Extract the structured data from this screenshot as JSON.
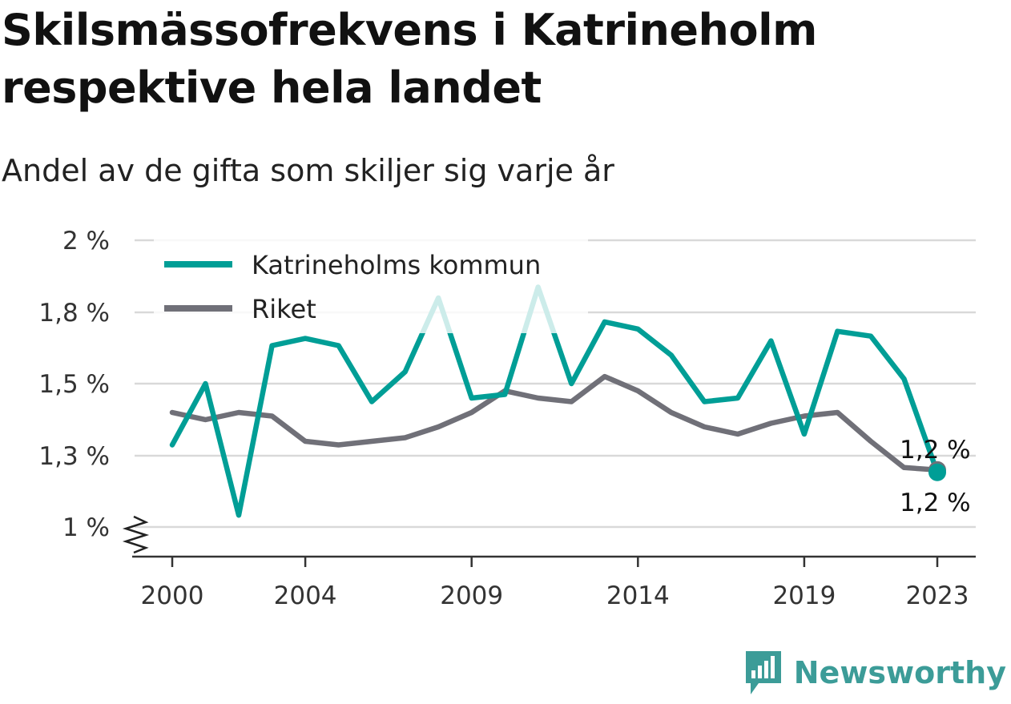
{
  "title": "Skilsmässofrekvens i Katrineholm respektive hela landet",
  "subtitle": "Andel av de gifta som skiljer sig varje år",
  "brand": "Newsworthy",
  "colors": {
    "katrineholm": "#009e96",
    "riket": "#707078",
    "grid": "#d9d9d9",
    "axis": "#333333",
    "brand": "#3c9c98"
  },
  "chart_data": {
    "type": "line",
    "x": [
      2000,
      2001,
      2002,
      2003,
      2004,
      2005,
      2006,
      2007,
      2008,
      2009,
      2010,
      2011,
      2012,
      2013,
      2014,
      2015,
      2016,
      2017,
      2018,
      2019,
      2020,
      2021,
      2022,
      2023
    ],
    "series": [
      {
        "name": "Katrineholms kommun",
        "color": "#009e96",
        "values": [
          1.33,
          1.5,
          1.05,
          1.66,
          1.69,
          1.66,
          1.45,
          1.55,
          1.84,
          1.46,
          1.47,
          1.87,
          1.5,
          1.76,
          1.73,
          1.62,
          1.45,
          1.46,
          1.68,
          1.36,
          1.72,
          1.7,
          1.52,
          1.23
        ]
      },
      {
        "name": "Riket",
        "color": "#707078",
        "values": [
          1.42,
          1.4,
          1.42,
          1.41,
          1.34,
          1.33,
          1.34,
          1.35,
          1.38,
          1.42,
          1.48,
          1.46,
          1.45,
          1.53,
          1.48,
          1.42,
          1.38,
          1.36,
          1.39,
          1.41,
          1.42,
          1.34,
          1.25,
          1.24
        ]
      }
    ],
    "xticks": [
      2000,
      2004,
      2009,
      2014,
      2019,
      2023
    ],
    "yticks": [
      1.0,
      1.3,
      1.5,
      1.8,
      2.0
    ],
    "ytick_labels": [
      "1 %",
      "1,3 %",
      "1,5 %",
      "1,8 %",
      "2 %"
    ],
    "ylim": [
      0.9,
      2.0
    ],
    "axis_break": true,
    "grid": true,
    "legend_position": "top-left",
    "end_labels": [
      "1,2 %",
      "1,2 %"
    ]
  }
}
